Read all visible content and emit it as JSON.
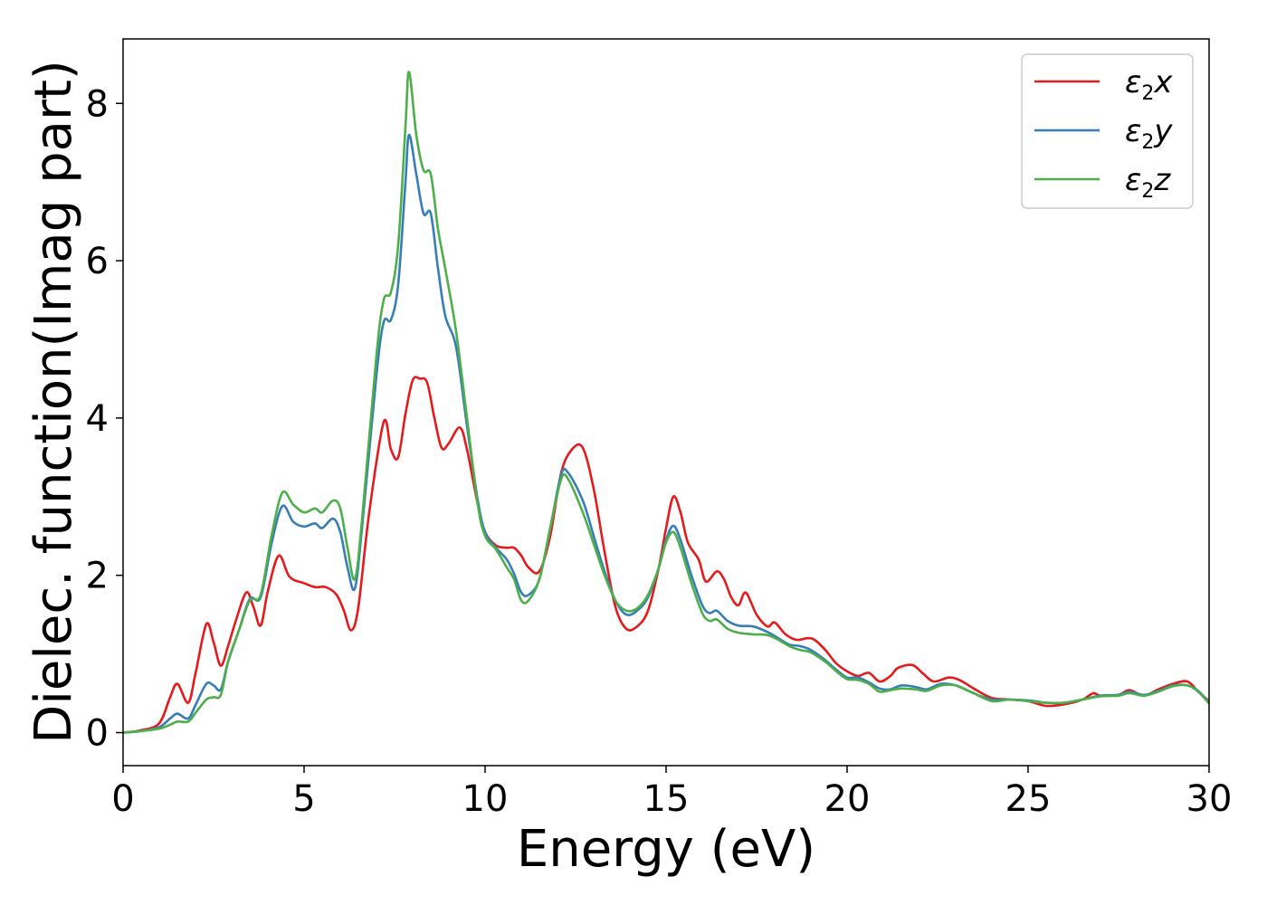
{
  "chart_data": {
    "type": "line",
    "xlabel": "Energy (eV)",
    "ylabel": "Dielec. function(Imag part)",
    "xlim": [
      0,
      30
    ],
    "ylim": [
      -0.42,
      8.82
    ],
    "xticks": [
      "0",
      "5",
      "10",
      "15",
      "20",
      "25",
      "30"
    ],
    "yticks": [
      "0",
      "2",
      "4",
      "6",
      "8"
    ],
    "grid": false,
    "legend_position": "top-right",
    "series": [
      {
        "name": "ε2x",
        "legend": {
          "base": "ε",
          "sub": "2",
          "axis": "x"
        },
        "color": "#e41a1c",
        "points": [
          [
            0,
            0
          ],
          [
            0.5,
            0.03
          ],
          [
            1.0,
            0.12
          ],
          [
            1.3,
            0.45
          ],
          [
            1.5,
            0.62
          ],
          [
            1.8,
            0.38
          ],
          [
            2.0,
            0.75
          ],
          [
            2.3,
            1.38
          ],
          [
            2.5,
            1.15
          ],
          [
            2.7,
            0.85
          ],
          [
            2.9,
            1.1
          ],
          [
            3.1,
            1.4
          ],
          [
            3.4,
            1.78
          ],
          [
            3.6,
            1.6
          ],
          [
            3.8,
            1.36
          ],
          [
            4.0,
            1.8
          ],
          [
            4.3,
            2.25
          ],
          [
            4.6,
            1.98
          ],
          [
            5.0,
            1.9
          ],
          [
            5.3,
            1.85
          ],
          [
            5.6,
            1.85
          ],
          [
            5.9,
            1.75
          ],
          [
            6.1,
            1.55
          ],
          [
            6.3,
            1.3
          ],
          [
            6.5,
            1.6
          ],
          [
            6.8,
            2.8
          ],
          [
            7.2,
            3.95
          ],
          [
            7.4,
            3.6
          ],
          [
            7.6,
            3.5
          ],
          [
            7.8,
            4.05
          ],
          [
            8.0,
            4.48
          ],
          [
            8.2,
            4.5
          ],
          [
            8.4,
            4.45
          ],
          [
            8.6,
            4.0
          ],
          [
            8.8,
            3.62
          ],
          [
            9.0,
            3.68
          ],
          [
            9.3,
            3.88
          ],
          [
            9.5,
            3.6
          ],
          [
            9.8,
            2.9
          ],
          [
            10.0,
            2.55
          ],
          [
            10.3,
            2.38
          ],
          [
            10.6,
            2.35
          ],
          [
            10.8,
            2.35
          ],
          [
            11.0,
            2.25
          ],
          [
            11.2,
            2.1
          ],
          [
            11.5,
            2.05
          ],
          [
            11.8,
            2.5
          ],
          [
            12.1,
            3.3
          ],
          [
            12.4,
            3.6
          ],
          [
            12.7,
            3.62
          ],
          [
            13.0,
            3.1
          ],
          [
            13.3,
            2.3
          ],
          [
            13.6,
            1.6
          ],
          [
            13.9,
            1.32
          ],
          [
            14.2,
            1.35
          ],
          [
            14.5,
            1.55
          ],
          [
            14.8,
            2.1
          ],
          [
            15.0,
            2.6
          ],
          [
            15.2,
            3.0
          ],
          [
            15.4,
            2.8
          ],
          [
            15.6,
            2.42
          ],
          [
            15.9,
            2.2
          ],
          [
            16.1,
            1.92
          ],
          [
            16.4,
            2.05
          ],
          [
            16.6,
            1.95
          ],
          [
            16.8,
            1.72
          ],
          [
            17.0,
            1.62
          ],
          [
            17.2,
            1.78
          ],
          [
            17.5,
            1.5
          ],
          [
            17.8,
            1.35
          ],
          [
            18.0,
            1.4
          ],
          [
            18.3,
            1.25
          ],
          [
            18.6,
            1.18
          ],
          [
            18.9,
            1.2
          ],
          [
            19.1,
            1.18
          ],
          [
            19.4,
            1.05
          ],
          [
            19.7,
            0.88
          ],
          [
            20.0,
            0.78
          ],
          [
            20.3,
            0.72
          ],
          [
            20.6,
            0.76
          ],
          [
            20.9,
            0.65
          ],
          [
            21.2,
            0.72
          ],
          [
            21.4,
            0.82
          ],
          [
            21.8,
            0.86
          ],
          [
            22.1,
            0.75
          ],
          [
            22.4,
            0.65
          ],
          [
            22.8,
            0.7
          ],
          [
            23.1,
            0.67
          ],
          [
            23.5,
            0.56
          ],
          [
            24.0,
            0.44
          ],
          [
            24.5,
            0.42
          ],
          [
            25.0,
            0.4
          ],
          [
            25.5,
            0.34
          ],
          [
            26.0,
            0.36
          ],
          [
            26.5,
            0.42
          ],
          [
            26.8,
            0.5
          ],
          [
            27.0,
            0.47
          ],
          [
            27.5,
            0.48
          ],
          [
            27.8,
            0.54
          ],
          [
            28.2,
            0.47
          ],
          [
            28.6,
            0.55
          ],
          [
            29.0,
            0.62
          ],
          [
            29.4,
            0.65
          ],
          [
            29.7,
            0.52
          ],
          [
            30.0,
            0.4
          ]
        ]
      },
      {
        "name": "ε2y",
        "legend": {
          "base": "ε",
          "sub": "2",
          "axis": "y"
        },
        "color": "#377eb8",
        "points": [
          [
            0,
            0
          ],
          [
            0.5,
            0.02
          ],
          [
            1.0,
            0.07
          ],
          [
            1.3,
            0.18
          ],
          [
            1.5,
            0.24
          ],
          [
            1.8,
            0.18
          ],
          [
            2.0,
            0.35
          ],
          [
            2.3,
            0.62
          ],
          [
            2.5,
            0.6
          ],
          [
            2.7,
            0.55
          ],
          [
            2.9,
            0.9
          ],
          [
            3.2,
            1.3
          ],
          [
            3.5,
            1.7
          ],
          [
            3.8,
            1.72
          ],
          [
            4.1,
            2.4
          ],
          [
            4.4,
            2.88
          ],
          [
            4.7,
            2.68
          ],
          [
            5.0,
            2.62
          ],
          [
            5.3,
            2.66
          ],
          [
            5.5,
            2.6
          ],
          [
            5.8,
            2.72
          ],
          [
            6.0,
            2.55
          ],
          [
            6.2,
            2.1
          ],
          [
            6.4,
            1.83
          ],
          [
            6.6,
            2.6
          ],
          [
            7.0,
            4.55
          ],
          [
            7.2,
            5.22
          ],
          [
            7.4,
            5.25
          ],
          [
            7.6,
            5.7
          ],
          [
            7.8,
            7.0
          ],
          [
            7.9,
            7.6
          ],
          [
            8.1,
            7.1
          ],
          [
            8.3,
            6.6
          ],
          [
            8.5,
            6.6
          ],
          [
            8.7,
            5.9
          ],
          [
            8.9,
            5.3
          ],
          [
            9.2,
            4.9
          ],
          [
            9.5,
            3.9
          ],
          [
            9.8,
            2.95
          ],
          [
            10.0,
            2.55
          ],
          [
            10.3,
            2.35
          ],
          [
            10.6,
            2.2
          ],
          [
            10.8,
            2.02
          ],
          [
            11.0,
            1.78
          ],
          [
            11.2,
            1.75
          ],
          [
            11.5,
            1.95
          ],
          [
            11.8,
            2.6
          ],
          [
            12.1,
            3.28
          ],
          [
            12.3,
            3.3
          ],
          [
            12.7,
            2.95
          ],
          [
            13.0,
            2.5
          ],
          [
            13.3,
            2.05
          ],
          [
            13.6,
            1.68
          ],
          [
            13.9,
            1.5
          ],
          [
            14.2,
            1.55
          ],
          [
            14.5,
            1.72
          ],
          [
            14.8,
            2.1
          ],
          [
            15.0,
            2.45
          ],
          [
            15.2,
            2.63
          ],
          [
            15.4,
            2.45
          ],
          [
            15.7,
            2.0
          ],
          [
            16.0,
            1.62
          ],
          [
            16.2,
            1.52
          ],
          [
            16.4,
            1.55
          ],
          [
            16.7,
            1.42
          ],
          [
            17.0,
            1.36
          ],
          [
            17.4,
            1.35
          ],
          [
            17.8,
            1.28
          ],
          [
            18.1,
            1.2
          ],
          [
            18.4,
            1.12
          ],
          [
            18.7,
            1.1
          ],
          [
            19.0,
            1.05
          ],
          [
            19.4,
            0.92
          ],
          [
            19.7,
            0.8
          ],
          [
            20.0,
            0.7
          ],
          [
            20.3,
            0.7
          ],
          [
            20.6,
            0.64
          ],
          [
            20.9,
            0.56
          ],
          [
            21.2,
            0.55
          ],
          [
            21.5,
            0.6
          ],
          [
            21.9,
            0.58
          ],
          [
            22.2,
            0.55
          ],
          [
            22.6,
            0.62
          ],
          [
            23.0,
            0.6
          ],
          [
            23.5,
            0.5
          ],
          [
            24.0,
            0.42
          ],
          [
            24.5,
            0.42
          ],
          [
            25.0,
            0.41
          ],
          [
            25.5,
            0.38
          ],
          [
            26.0,
            0.38
          ],
          [
            26.5,
            0.42
          ],
          [
            27.0,
            0.47
          ],
          [
            27.5,
            0.48
          ],
          [
            27.8,
            0.52
          ],
          [
            28.2,
            0.48
          ],
          [
            28.6,
            0.53
          ],
          [
            29.0,
            0.6
          ],
          [
            29.4,
            0.6
          ],
          [
            29.7,
            0.53
          ],
          [
            30.0,
            0.38
          ]
        ]
      },
      {
        "name": "ε2z",
        "legend": {
          "base": "ε",
          "sub": "2",
          "axis": "z"
        },
        "color": "#4daf4a",
        "points": [
          [
            0,
            0
          ],
          [
            0.5,
            0.02
          ],
          [
            1.0,
            0.05
          ],
          [
            1.3,
            0.1
          ],
          [
            1.5,
            0.14
          ],
          [
            1.8,
            0.14
          ],
          [
            2.0,
            0.25
          ],
          [
            2.3,
            0.42
          ],
          [
            2.5,
            0.45
          ],
          [
            2.7,
            0.48
          ],
          [
            2.9,
            0.9
          ],
          [
            3.2,
            1.3
          ],
          [
            3.5,
            1.68
          ],
          [
            3.8,
            1.75
          ],
          [
            4.1,
            2.5
          ],
          [
            4.4,
            3.05
          ],
          [
            4.7,
            2.9
          ],
          [
            5.0,
            2.8
          ],
          [
            5.3,
            2.85
          ],
          [
            5.5,
            2.8
          ],
          [
            5.8,
            2.95
          ],
          [
            6.0,
            2.85
          ],
          [
            6.2,
            2.35
          ],
          [
            6.4,
            1.95
          ],
          [
            6.6,
            2.7
          ],
          [
            7.0,
            4.8
          ],
          [
            7.2,
            5.5
          ],
          [
            7.4,
            5.6
          ],
          [
            7.6,
            6.2
          ],
          [
            7.8,
            7.7
          ],
          [
            7.9,
            8.4
          ],
          [
            8.1,
            7.6
          ],
          [
            8.3,
            7.15
          ],
          [
            8.5,
            7.1
          ],
          [
            8.7,
            6.4
          ],
          [
            8.9,
            5.9
          ],
          [
            9.2,
            5.1
          ],
          [
            9.5,
            4.0
          ],
          [
            9.8,
            2.9
          ],
          [
            10.0,
            2.5
          ],
          [
            10.3,
            2.33
          ],
          [
            10.6,
            2.1
          ],
          [
            10.8,
            1.95
          ],
          [
            11.0,
            1.68
          ],
          [
            11.2,
            1.68
          ],
          [
            11.5,
            1.95
          ],
          [
            11.8,
            2.6
          ],
          [
            12.1,
            3.22
          ],
          [
            12.3,
            3.22
          ],
          [
            12.7,
            2.8
          ],
          [
            13.0,
            2.4
          ],
          [
            13.3,
            2.0
          ],
          [
            13.6,
            1.68
          ],
          [
            13.9,
            1.55
          ],
          [
            14.2,
            1.58
          ],
          [
            14.5,
            1.75
          ],
          [
            14.8,
            2.1
          ],
          [
            15.0,
            2.42
          ],
          [
            15.2,
            2.55
          ],
          [
            15.4,
            2.35
          ],
          [
            15.7,
            1.9
          ],
          [
            16.0,
            1.52
          ],
          [
            16.2,
            1.42
          ],
          [
            16.4,
            1.44
          ],
          [
            16.7,
            1.32
          ],
          [
            17.0,
            1.27
          ],
          [
            17.4,
            1.25
          ],
          [
            17.8,
            1.24
          ],
          [
            18.1,
            1.18
          ],
          [
            18.4,
            1.1
          ],
          [
            18.7,
            1.05
          ],
          [
            19.0,
            1.02
          ],
          [
            19.4,
            0.9
          ],
          [
            19.7,
            0.78
          ],
          [
            20.0,
            0.68
          ],
          [
            20.3,
            0.67
          ],
          [
            20.6,
            0.62
          ],
          [
            20.9,
            0.52
          ],
          [
            21.2,
            0.54
          ],
          [
            21.5,
            0.56
          ],
          [
            21.9,
            0.55
          ],
          [
            22.2,
            0.53
          ],
          [
            22.6,
            0.6
          ],
          [
            23.0,
            0.6
          ],
          [
            23.5,
            0.5
          ],
          [
            24.0,
            0.4
          ],
          [
            24.5,
            0.42
          ],
          [
            25.0,
            0.4
          ],
          [
            25.5,
            0.38
          ],
          [
            26.0,
            0.38
          ],
          [
            26.5,
            0.42
          ],
          [
            27.0,
            0.46
          ],
          [
            27.5,
            0.47
          ],
          [
            27.8,
            0.5
          ],
          [
            28.2,
            0.47
          ],
          [
            28.6,
            0.52
          ],
          [
            29.0,
            0.59
          ],
          [
            29.4,
            0.6
          ],
          [
            29.7,
            0.52
          ],
          [
            30.0,
            0.37
          ]
        ]
      }
    ]
  }
}
